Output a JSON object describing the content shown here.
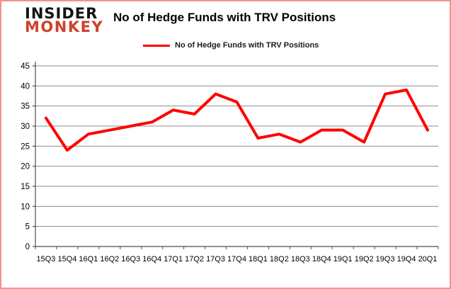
{
  "page": {
    "background": "#ffffff",
    "border_color": "#f0948c"
  },
  "logo": {
    "line1": "INSIDER",
    "line2": "MONKEY",
    "line1_color": "#141414",
    "line2_color": "#d0402a"
  },
  "header": {
    "title": "No of Hedge Funds with TRV Positions"
  },
  "legend": {
    "label": "No of Hedge Funds with TRV Positions",
    "swatch_color": "#ff0000",
    "position": "top-center"
  },
  "chart_data": {
    "type": "line",
    "title": "No of Hedge Funds with TRV Positions",
    "categories": [
      "15Q3",
      "15Q4",
      "16Q1",
      "16Q2",
      "16Q3",
      "16Q4",
      "17Q1",
      "17Q2",
      "17Q3",
      "17Q4",
      "18Q1",
      "18Q2",
      "18Q3",
      "18Q4",
      "19Q1",
      "19Q2",
      "19Q3",
      "19Q4",
      "20Q1"
    ],
    "values": [
      32,
      24,
      28,
      29,
      30,
      31,
      34,
      33,
      38,
      36,
      27,
      28,
      26,
      29,
      29,
      26,
      38,
      39,
      29
    ],
    "xlabel": "",
    "ylabel": "",
    "ylim": [
      0,
      45
    ],
    "ytick_step": 5,
    "yticks": [
      0,
      5,
      10,
      15,
      20,
      25,
      30,
      35,
      40,
      45
    ],
    "grid": true,
    "legend_entries": [
      "No of Hedge Funds with TRV Positions"
    ],
    "line_color": "#ff0000",
    "line_width": 4,
    "gridline_color": "#8c8c8c",
    "axis_color": "#4d4d4d",
    "label_color": "#000000"
  }
}
